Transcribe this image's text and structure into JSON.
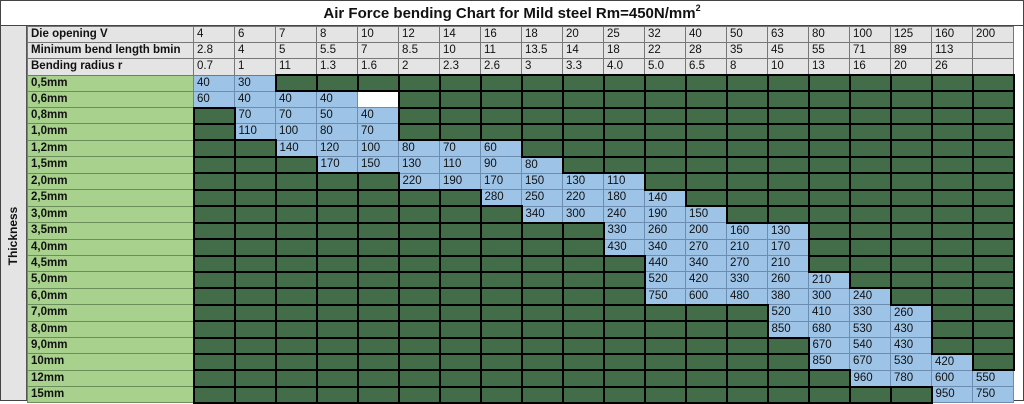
{
  "title": {
    "text": "Air Force bending Chart for Mild steel Rm=450N/mm",
    "superscript": "2"
  },
  "side_label": "Thickness",
  "colors": {
    "header_bg": "#e4e4e4",
    "thickness_bg": "#a9d18e",
    "value_bg": "#9dc3e6",
    "unavailable_bg": "#436d48"
  },
  "header_rows": [
    {
      "label": "Die opening V",
      "values": [
        "4",
        "6",
        "7",
        "8",
        "10",
        "12",
        "14",
        "16",
        "18",
        "20",
        "25",
        "32",
        "40",
        "50",
        "63",
        "80",
        "100",
        "125",
        "160",
        "200"
      ]
    },
    {
      "label": "Minimum bend length bmin",
      "values": [
        "2.8",
        "4",
        "5",
        "5.5",
        "7",
        "8.5",
        "10",
        "11",
        "13.5",
        "14",
        "18",
        "22",
        "28",
        "35",
        "45",
        "55",
        "71",
        "89",
        "113",
        ""
      ]
    },
    {
      "label": "Bending radius r",
      "values": [
        "0.7",
        "1",
        "11",
        "1.3",
        "1.6",
        "2",
        "2.3",
        "2.6",
        "3",
        "3.3",
        "4.0",
        "5.0",
        "6.5",
        "8",
        "10",
        "13",
        "16",
        "20",
        "26",
        ""
      ]
    }
  ],
  "rows": [
    {
      "thickness": "0,5mm",
      "cells": [
        "40",
        "30",
        null,
        null,
        null,
        null,
        null,
        null,
        null,
        null,
        null,
        null,
        null,
        null,
        null,
        null,
        null,
        null,
        null,
        null
      ]
    },
    {
      "thickness": "0,6mm",
      "cells": [
        "60",
        "40",
        "40",
        "40",
        "",
        null,
        null,
        null,
        null,
        null,
        null,
        null,
        null,
        null,
        null,
        null,
        null,
        null,
        null,
        null
      ]
    },
    {
      "thickness": "0,8mm",
      "cells": [
        null,
        "70",
        "70",
        "50",
        "40",
        null,
        null,
        null,
        null,
        null,
        null,
        null,
        null,
        null,
        null,
        null,
        null,
        null,
        null,
        null
      ]
    },
    {
      "thickness": "1,0mm",
      "cells": [
        null,
        "110",
        "100",
        "80",
        "70",
        null,
        null,
        null,
        null,
        null,
        null,
        null,
        null,
        null,
        null,
        null,
        null,
        null,
        null,
        null
      ]
    },
    {
      "thickness": "1,2mm",
      "cells": [
        null,
        null,
        "140",
        "120",
        "100",
        "80",
        "70",
        "60",
        null,
        null,
        null,
        null,
        null,
        null,
        null,
        null,
        null,
        null,
        null,
        null
      ]
    },
    {
      "thickness": "1,5mm",
      "cells": [
        null,
        null,
        null,
        "170",
        "150",
        "130",
        "110",
        "90",
        "80",
        null,
        null,
        null,
        null,
        null,
        null,
        null,
        null,
        null,
        null,
        null
      ]
    },
    {
      "thickness": "2,0mm",
      "cells": [
        null,
        null,
        null,
        null,
        null,
        "220",
        "190",
        "170",
        "150",
        "130",
        "110",
        null,
        null,
        null,
        null,
        null,
        null,
        null,
        null,
        null
      ]
    },
    {
      "thickness": "2,5mm",
      "cells": [
        null,
        null,
        null,
        null,
        null,
        null,
        null,
        "280",
        "250",
        "220",
        "180",
        "140",
        null,
        null,
        null,
        null,
        null,
        null,
        null,
        null
      ]
    },
    {
      "thickness": "3,0mm",
      "cells": [
        null,
        null,
        null,
        null,
        null,
        null,
        null,
        null,
        "340",
        "300",
        "240",
        "190",
        "150",
        null,
        null,
        null,
        null,
        null,
        null,
        null
      ]
    },
    {
      "thickness": "3,5mm",
      "cells": [
        null,
        null,
        null,
        null,
        null,
        null,
        null,
        null,
        null,
        null,
        "330",
        "260",
        "200",
        "160",
        "130",
        null,
        null,
        null,
        null,
        null
      ]
    },
    {
      "thickness": "4,0mm",
      "cells": [
        null,
        null,
        null,
        null,
        null,
        null,
        null,
        null,
        null,
        null,
        "430",
        "340",
        "270",
        "210",
        "170",
        null,
        null,
        null,
        null,
        null
      ]
    },
    {
      "thickness": "4,5mm",
      "cells": [
        null,
        null,
        null,
        null,
        null,
        null,
        null,
        null,
        null,
        null,
        null,
        "440",
        "340",
        "270",
        "210",
        null,
        null,
        null,
        null,
        null
      ]
    },
    {
      "thickness": "5,0mm",
      "cells": [
        null,
        null,
        null,
        null,
        null,
        null,
        null,
        null,
        null,
        null,
        null,
        "520",
        "420",
        "330",
        "260",
        "210",
        null,
        null,
        null,
        null
      ]
    },
    {
      "thickness": "6,0mm",
      "cells": [
        null,
        null,
        null,
        null,
        null,
        null,
        null,
        null,
        null,
        null,
        null,
        "750",
        "600",
        "480",
        "380",
        "300",
        "240",
        null,
        null,
        null
      ]
    },
    {
      "thickness": "7,0mm",
      "cells": [
        null,
        null,
        null,
        null,
        null,
        null,
        null,
        null,
        null,
        null,
        null,
        null,
        null,
        null,
        "520",
        "410",
        "330",
        "260",
        null,
        null
      ]
    },
    {
      "thickness": "8,0mm",
      "cells": [
        null,
        null,
        null,
        null,
        null,
        null,
        null,
        null,
        null,
        null,
        null,
        null,
        null,
        null,
        "850",
        "680",
        "530",
        "430",
        null,
        null
      ]
    },
    {
      "thickness": "9,0mm",
      "cells": [
        null,
        null,
        null,
        null,
        null,
        null,
        null,
        null,
        null,
        null,
        null,
        null,
        null,
        null,
        null,
        "670",
        "540",
        "430",
        null,
        null
      ]
    },
    {
      "thickness": "10mm",
      "cells": [
        null,
        null,
        null,
        null,
        null,
        null,
        null,
        null,
        null,
        null,
        null,
        null,
        null,
        null,
        null,
        "850",
        "670",
        "530",
        "420",
        null
      ]
    },
    {
      "thickness": "12mm",
      "cells": [
        null,
        null,
        null,
        null,
        null,
        null,
        null,
        null,
        null,
        null,
        null,
        null,
        null,
        null,
        null,
        null,
        "960",
        "780",
        "600",
        "550"
      ]
    },
    {
      "thickness": "15mm",
      "cells": [
        null,
        null,
        null,
        null,
        null,
        null,
        null,
        null,
        null,
        null,
        null,
        null,
        null,
        null,
        null,
        null,
        null,
        null,
        "950",
        "750"
      ]
    }
  ]
}
